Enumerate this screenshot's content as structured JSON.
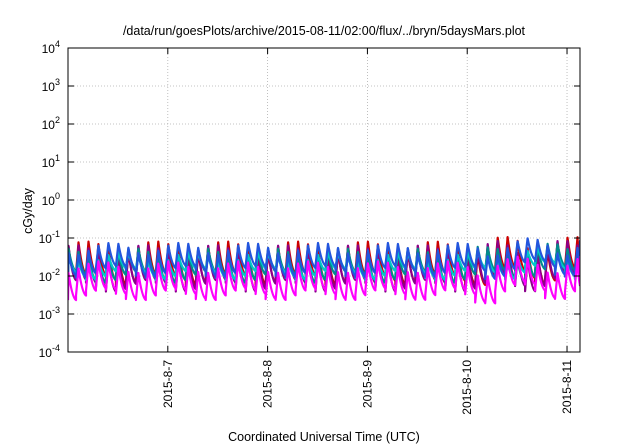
{
  "chart_data": {
    "type": "line",
    "title": "/data/run/goesPlots/archive/2015-08-11/02:00/flux/../bryn/5daysMars.plot",
    "xlabel": "Coordinated Universal Time (UTC)",
    "ylabel": "cGy/day",
    "y_scale": "log",
    "ylim": [
      0.0001,
      10000
    ],
    "y_ticks": [
      {
        "base": "10",
        "exp": "4"
      },
      {
        "base": "10",
        "exp": "3"
      },
      {
        "base": "10",
        "exp": "2"
      },
      {
        "base": "10",
        "exp": "1"
      },
      {
        "base": "10",
        "exp": "0"
      },
      {
        "base": "10",
        "exp": "-1"
      },
      {
        "base": "10",
        "exp": "-2"
      },
      {
        "base": "10",
        "exp": "-3"
      },
      {
        "base": "10",
        "exp": "-4"
      }
    ],
    "x_range_days": [
      2015.0806,
      2015.0811
    ],
    "x_ticks": [
      "2015-8-7",
      "2015-8-8",
      "2015-8-9",
      "2015-8-10",
      "2015-8-11"
    ],
    "grid": true,
    "series": [
      {
        "color": "#cc0000",
        "peak": 0.06,
        "trough": 0.009
      },
      {
        "color": "#8b008b",
        "peak": 0.048,
        "trough": 0.006
      },
      {
        "color": "#008b8b",
        "peak": 0.04,
        "trough": 0.01
      },
      {
        "color": "#00c8c8",
        "peak": 0.032,
        "trough": 0.012
      },
      {
        "color": "#2255dd",
        "peak": 0.055,
        "trough": 0.014
      },
      {
        "color": "#ff00ff",
        "peak": 0.018,
        "trough": 0.0035
      }
    ],
    "pulses_per_day": 10
  }
}
